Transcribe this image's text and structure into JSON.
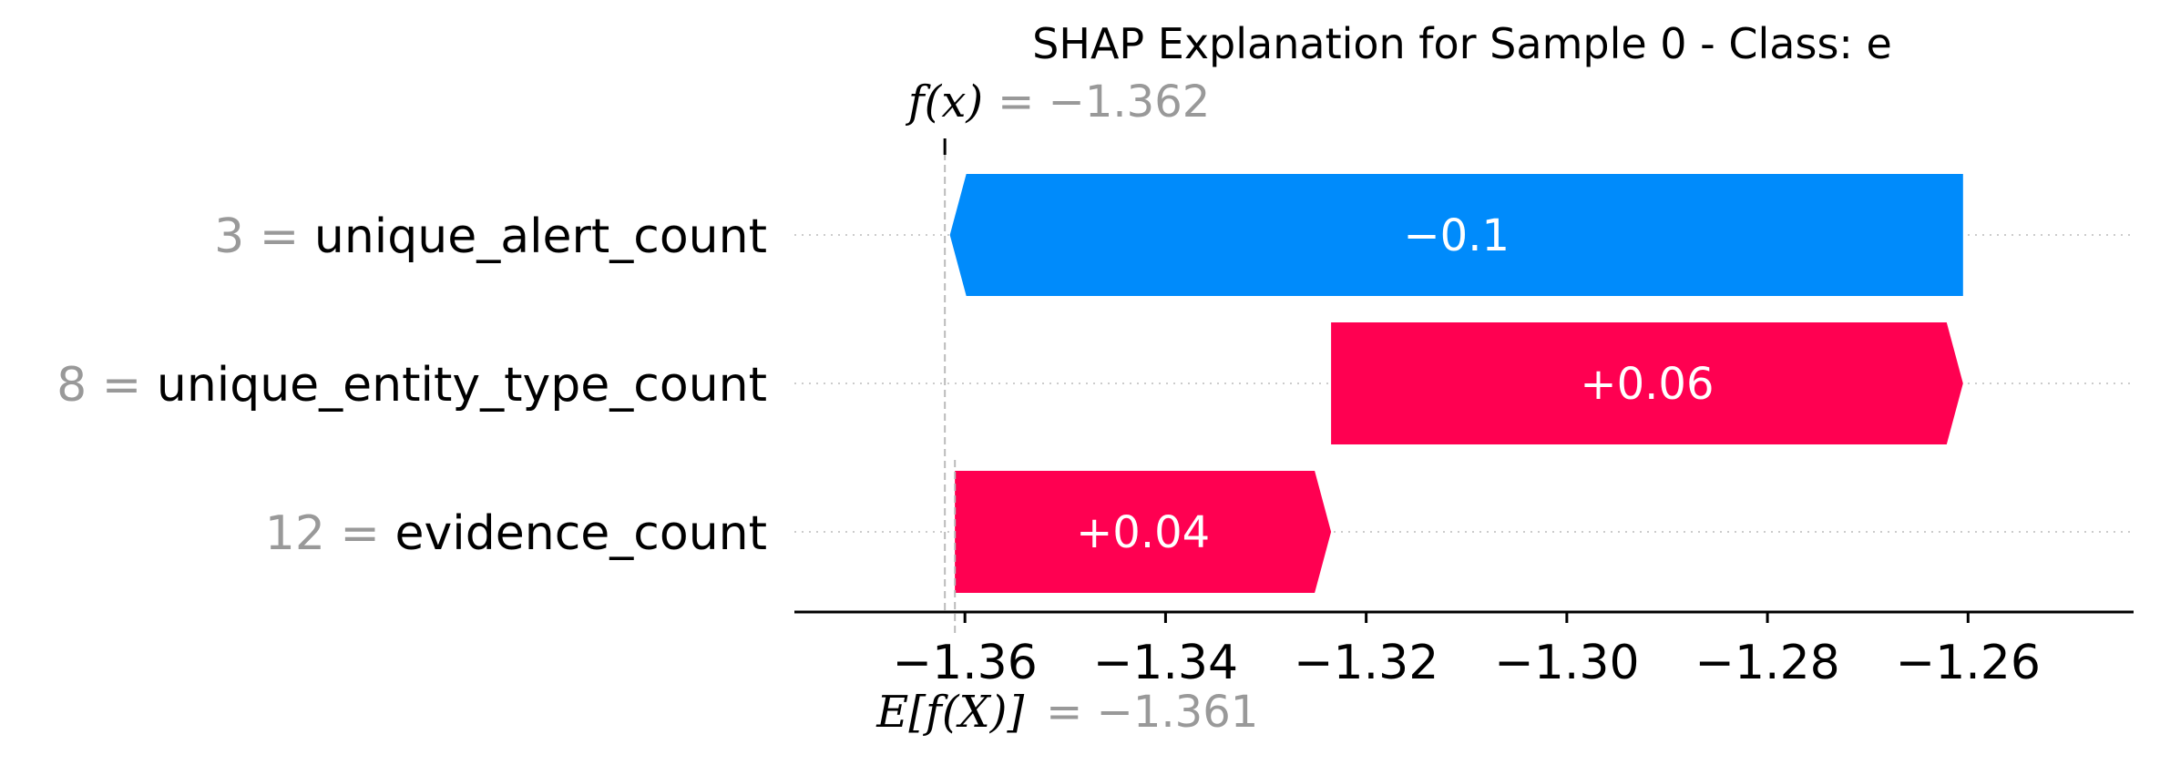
{
  "chart_data": {
    "type": "waterfall",
    "title": "SHAP Explanation for Sample 0 - Class: e",
    "fx_label": "f(x)",
    "fx_value": -1.362,
    "fx_value_text": "= −1.362",
    "base_label": "E[f(X)]",
    "base_value": -1.361,
    "base_value_text": "= −1.361",
    "xlim": [
      -1.377,
      -1.2435
    ],
    "xticks": [
      -1.36,
      -1.34,
      -1.32,
      -1.3,
      -1.28,
      -1.26
    ],
    "xtick_labels": [
      "−1.36",
      "−1.34",
      "−1.32",
      "−1.30",
      "−1.28",
      "−1.26"
    ],
    "features": [
      {
        "value_text": "3 =",
        "name": "unique_alert_count",
        "start": -1.2605,
        "end": -1.3615,
        "shap_text": "−0.1"
      },
      {
        "value_text": "8 =",
        "name": "unique_entity_type_count",
        "start": -1.3235,
        "end": -1.2605,
        "shap_text": "+0.06"
      },
      {
        "value_text": "12 =",
        "name": "evidence_count",
        "start": -1.361,
        "end": -1.3235,
        "shap_text": "+0.04"
      }
    ],
    "colors": {
      "positive": "#ff0051",
      "negative": "#008bfb",
      "grid": "#cccccc",
      "muted": "#999999"
    },
    "grid": "dotted horizontal per feature"
  }
}
